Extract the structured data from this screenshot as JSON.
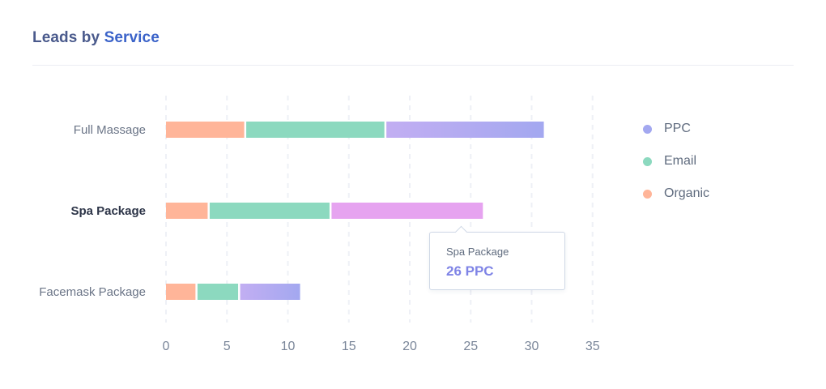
{
  "header": {
    "title_part1": "Leads by",
    "title_part2": "Service"
  },
  "chart_data": {
    "type": "bar",
    "orientation": "horizontal",
    "stacked": true,
    "categories": [
      "Full Massage",
      "Spa Package",
      "Facemask Package"
    ],
    "highlighted_category": "Spa Package",
    "series": [
      {
        "name": "Organic",
        "values": [
          6.5,
          3.5,
          2.5
        ],
        "color": "#ffb599"
      },
      {
        "name": "Email",
        "values": [
          11.5,
          10,
          3.5
        ],
        "color": "#8cd9bf"
      },
      {
        "name": "PPC",
        "values": [
          13,
          12.5,
          5
        ],
        "color": "#a3a8f0",
        "gradient_from": "#c2aef2"
      }
    ],
    "highlight_color": "#e6a3f0",
    "xlim": [
      0,
      35
    ],
    "xticks": [
      0,
      5,
      10,
      15,
      20,
      25,
      30,
      35
    ],
    "grid": true,
    "legend_position": "right"
  },
  "legend": {
    "items": [
      {
        "label": "PPC",
        "color": "#a3a8f0"
      },
      {
        "label": "Email",
        "color": "#8cd9bf"
      },
      {
        "label": "Organic",
        "color": "#ffb599"
      }
    ]
  },
  "tooltip": {
    "label": "Spa Package",
    "value": "26 PPC"
  }
}
